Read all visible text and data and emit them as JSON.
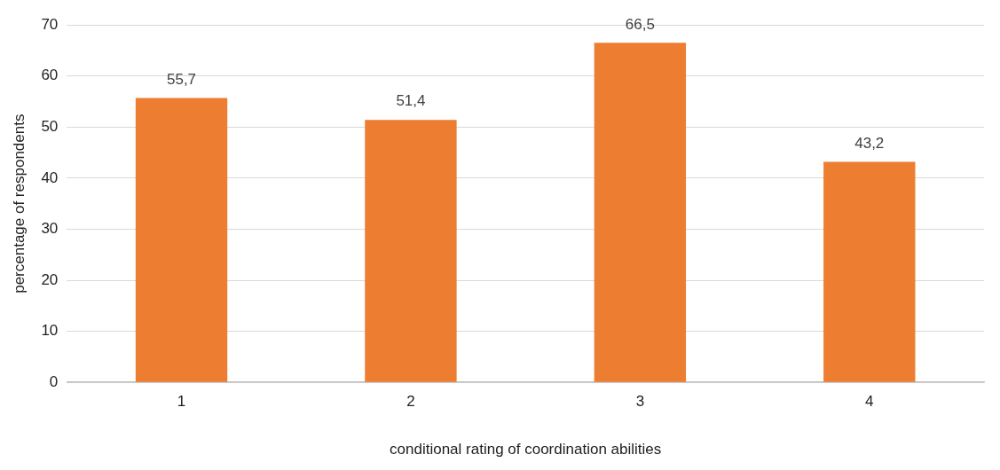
{
  "chart_data": {
    "type": "bar",
    "xlabel": "conditional rating of coordination abilities",
    "ylabel": "percentage of respondents",
    "categories": [
      "1",
      "2",
      "3",
      "4"
    ],
    "values": [
      55.7,
      51.4,
      66.5,
      43.2
    ],
    "value_labels": [
      "55,7",
      "51,4",
      "66,5",
      "43,2"
    ],
    "color": "#ed7d31",
    "ylim": [
      0,
      70
    ],
    "yticks": [
      0,
      10,
      20,
      30,
      40,
      50,
      60,
      70
    ],
    "grid": "y",
    "legend": false
  }
}
